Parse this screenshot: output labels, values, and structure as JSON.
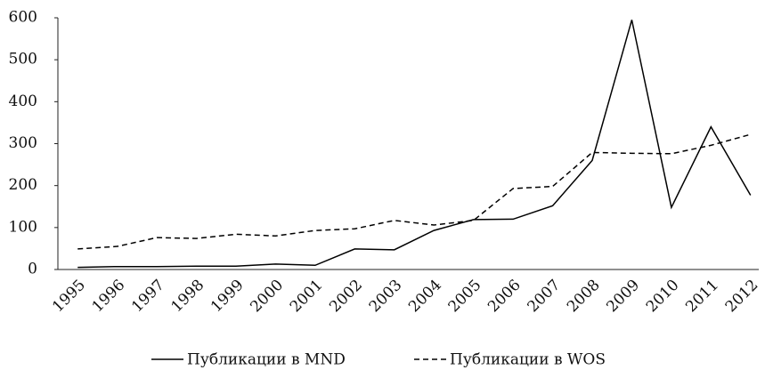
{
  "chart_data": {
    "type": "line",
    "categories": [
      "1995",
      "1996",
      "1997",
      "1998",
      "1999",
      "2000",
      "2001",
      "2002",
      "2003",
      "2004",
      "2005",
      "2006",
      "2007",
      "2008",
      "2009",
      "2010",
      "2011",
      "2012"
    ],
    "series": [
      {
        "name": "Публикации в MND",
        "color": "#000000",
        "dash": "solid",
        "values": [
          5,
          7,
          7,
          8,
          8,
          13,
          10,
          49,
          47,
          93,
          119,
          120,
          152,
          260,
          595,
          148,
          340,
          177
        ]
      },
      {
        "name": "Публикации в WOS",
        "color": "#000000",
        "dash": "dashed",
        "values": [
          49,
          55,
          76,
          74,
          84,
          80,
          93,
          97,
          117,
          106,
          117,
          193,
          198,
          279,
          277,
          276,
          296,
          322
        ]
      }
    ],
    "ylim": [
      0,
      600
    ],
    "yticks": [
      0,
      100,
      200,
      300,
      400,
      500,
      600
    ],
    "grid": false,
    "legend": "bottom"
  }
}
